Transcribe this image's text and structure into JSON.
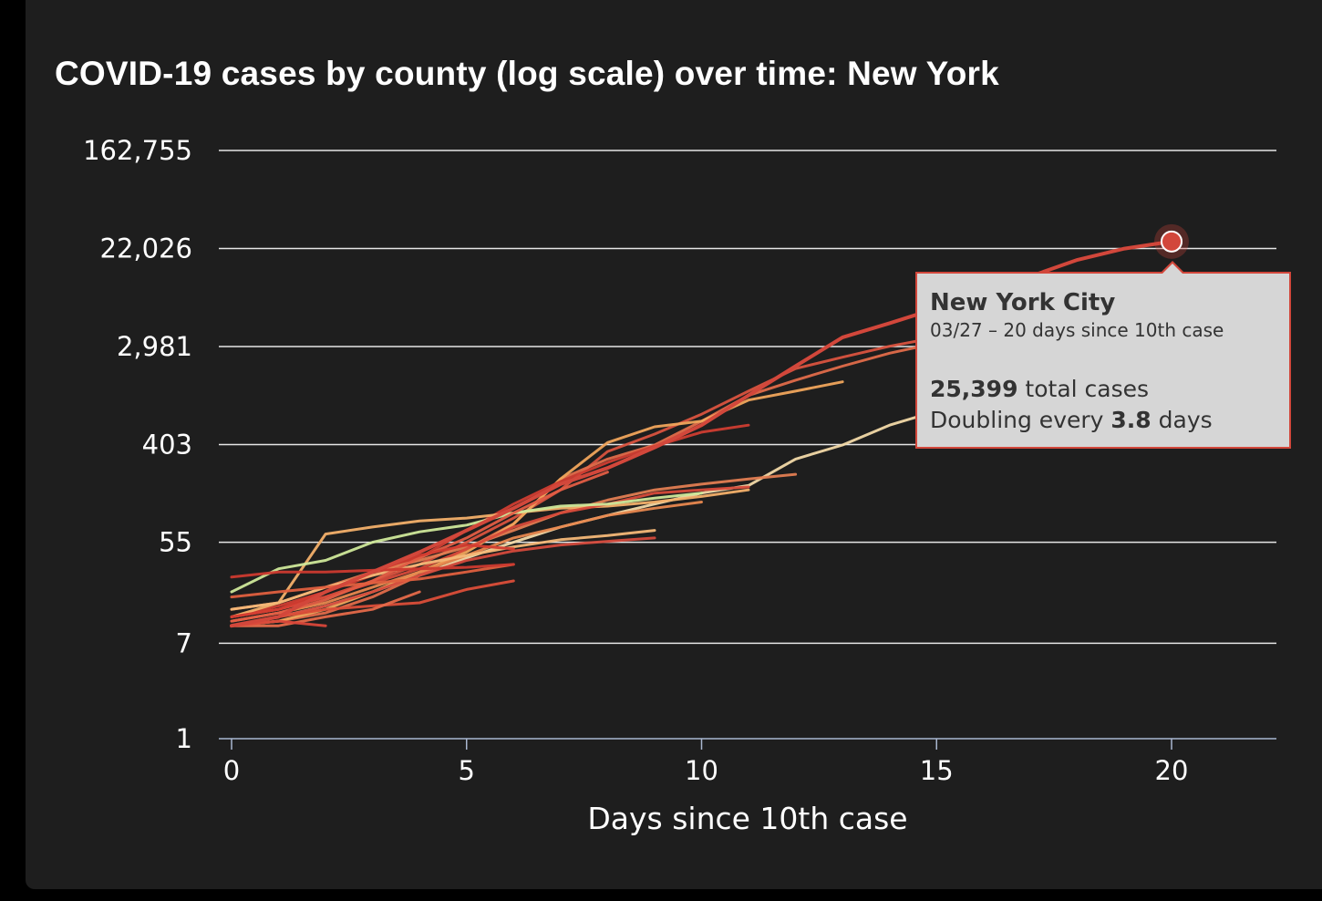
{
  "chart_data": {
    "type": "line",
    "title": "COVID-19 cases by county (log scale) over time: New York",
    "xlabel": "Days since 10th case",
    "ylabel": "",
    "y_scale": "log",
    "xlim": [
      0,
      22
    ],
    "ylim": [
      1,
      162755
    ],
    "x_ticks": [
      "0",
      "5",
      "10",
      "15",
      "20"
    ],
    "y_ticks": [
      "1",
      "7",
      "55",
      "403",
      "2,981",
      "22,026",
      "162,755"
    ],
    "grid": true,
    "series": [
      {
        "name": "New York City",
        "color": "#d2473b",
        "highlight": true,
        "points": [
          [
            0,
            10
          ],
          [
            1,
            12
          ],
          [
            2,
            20
          ],
          [
            3,
            30
          ],
          [
            4,
            45
          ],
          [
            5,
            70
          ],
          [
            6,
            110
          ],
          [
            7,
            180
          ],
          [
            8,
            250
          ],
          [
            9,
            380
          ],
          [
            10,
            600
          ],
          [
            11,
            1100
          ],
          [
            12,
            2000
          ],
          [
            13,
            3600
          ],
          [
            14,
            4800
          ],
          [
            15,
            6500
          ],
          [
            16,
            9000
          ],
          [
            17,
            12500
          ],
          [
            18,
            17500
          ],
          [
            19,
            22000
          ],
          [
            20,
            25399
          ]
        ]
      },
      {
        "color": "#f2d9a8",
        "points": [
          [
            0,
            10
          ],
          [
            1,
            12
          ],
          [
            2,
            15
          ],
          [
            3,
            20
          ],
          [
            4,
            28
          ],
          [
            5,
            40
          ],
          [
            6,
            55
          ],
          [
            7,
            75
          ],
          [
            8,
            95
          ],
          [
            9,
            120
          ],
          [
            10,
            150
          ],
          [
            11,
            175
          ],
          [
            12,
            300
          ],
          [
            13,
            400
          ],
          [
            14,
            600
          ],
          [
            15,
            800
          ],
          [
            16,
            1100
          ],
          [
            17,
            1500
          ],
          [
            18,
            2300
          ],
          [
            19,
            3100
          ],
          [
            20,
            3800
          ],
          [
            21,
            4600
          ],
          [
            22,
            5400
          ]
        ]
      },
      {
        "color": "#d9533f",
        "points": [
          [
            0,
            12
          ],
          [
            1,
            14
          ],
          [
            2,
            18
          ],
          [
            3,
            25
          ],
          [
            4,
            35
          ],
          [
            5,
            55
          ],
          [
            6,
            90
          ],
          [
            7,
            160
          ],
          [
            8,
            350
          ],
          [
            9,
            500
          ],
          [
            10,
            750
          ],
          [
            11,
            1200
          ],
          [
            12,
            1900
          ],
          [
            13,
            2400
          ],
          [
            14,
            3000
          ],
          [
            15,
            3600
          ],
          [
            16,
            4300
          ],
          [
            17,
            5100
          ],
          [
            18,
            5900
          ]
        ]
      },
      {
        "color": "#e06c4a",
        "points": [
          [
            0,
            10
          ],
          [
            1,
            11
          ],
          [
            2,
            13
          ],
          [
            3,
            18
          ],
          [
            4,
            28
          ],
          [
            5,
            48
          ],
          [
            6,
            80
          ],
          [
            7,
            200
          ],
          [
            8,
            300
          ],
          [
            9,
            400
          ],
          [
            10,
            650
          ],
          [
            11,
            1100
          ],
          [
            12,
            1500
          ],
          [
            13,
            2000
          ],
          [
            14,
            2600
          ],
          [
            15,
            3200
          ],
          [
            16,
            3900
          ],
          [
            17,
            4600
          ]
        ]
      },
      {
        "color": "#f0a55c",
        "points": [
          [
            0,
            10
          ],
          [
            1,
            11
          ],
          [
            2,
            14
          ],
          [
            3,
            20
          ],
          [
            4,
            30
          ],
          [
            5,
            45
          ],
          [
            6,
            80
          ],
          [
            7,
            200
          ],
          [
            8,
            420
          ],
          [
            9,
            580
          ],
          [
            10,
            650
          ],
          [
            11,
            1000
          ],
          [
            12,
            1200
          ],
          [
            13,
            1450
          ]
        ]
      },
      {
        "color": "#cf3d31",
        "points": [
          [
            0,
            12
          ],
          [
            1,
            15
          ],
          [
            2,
            20
          ],
          [
            3,
            28
          ],
          [
            4,
            40
          ],
          [
            5,
            70
          ],
          [
            6,
            120
          ],
          [
            7,
            190
          ],
          [
            8,
            280
          ],
          [
            9,
            390
          ],
          [
            10,
            520
          ],
          [
            11,
            600
          ]
        ]
      },
      {
        "color": "#e27d52",
        "points": [
          [
            0,
            14
          ],
          [
            1,
            16
          ],
          [
            2,
            22
          ],
          [
            3,
            30
          ],
          [
            4,
            38
          ],
          [
            5,
            50
          ],
          [
            6,
            70
          ],
          [
            7,
            100
          ],
          [
            8,
            130
          ],
          [
            9,
            160
          ],
          [
            10,
            180
          ],
          [
            11,
            200
          ],
          [
            12,
            220
          ]
        ]
      },
      {
        "color": "#f3b06a",
        "points": [
          [
            0,
            12
          ],
          [
            1,
            16
          ],
          [
            2,
            65
          ],
          [
            3,
            75
          ],
          [
            4,
            85
          ],
          [
            5,
            90
          ],
          [
            6,
            100
          ],
          [
            7,
            110
          ],
          [
            8,
            115
          ],
          [
            9,
            125
          ],
          [
            10,
            140
          ],
          [
            11,
            160
          ]
        ]
      },
      {
        "color": "#d64a3a",
        "points": [
          [
            0,
            12
          ],
          [
            1,
            14
          ],
          [
            2,
            18
          ],
          [
            3,
            24
          ],
          [
            4,
            32
          ],
          [
            5,
            48
          ],
          [
            6,
            75
          ],
          [
            7,
            100
          ],
          [
            8,
            120
          ],
          [
            9,
            150
          ],
          [
            10,
            160
          ],
          [
            11,
            170
          ]
        ]
      },
      {
        "color": "#cfe89a",
        "points": [
          [
            0,
            20
          ],
          [
            1,
            32
          ],
          [
            2,
            38
          ],
          [
            3,
            55
          ],
          [
            4,
            68
          ],
          [
            5,
            78
          ],
          [
            6,
            100
          ],
          [
            7,
            115
          ],
          [
            8,
            120
          ],
          [
            9,
            135
          ],
          [
            10,
            150
          ]
        ]
      },
      {
        "color": "#e8884f",
        "points": [
          [
            0,
            11
          ],
          [
            1,
            13
          ],
          [
            2,
            16
          ],
          [
            3,
            22
          ],
          [
            4,
            30
          ],
          [
            5,
            42
          ],
          [
            6,
            60
          ],
          [
            7,
            75
          ],
          [
            8,
            95
          ],
          [
            9,
            110
          ],
          [
            10,
            125
          ]
        ]
      },
      {
        "color": "#f4b878",
        "points": [
          [
            0,
            14
          ],
          [
            1,
            16
          ],
          [
            2,
            22
          ],
          [
            3,
            28
          ],
          [
            4,
            35
          ],
          [
            5,
            42
          ],
          [
            6,
            50
          ],
          [
            7,
            58
          ],
          [
            8,
            63
          ],
          [
            9,
            70
          ]
        ]
      },
      {
        "color": "#d44a3c",
        "points": [
          [
            0,
            10
          ],
          [
            1,
            12
          ],
          [
            2,
            15
          ],
          [
            3,
            20
          ],
          [
            4,
            28
          ],
          [
            5,
            38
          ],
          [
            6,
            46
          ],
          [
            7,
            52
          ],
          [
            8,
            56
          ],
          [
            9,
            60
          ]
        ]
      },
      {
        "color": "#e25d45",
        "points": [
          [
            0,
            11
          ],
          [
            1,
            13
          ],
          [
            2,
            17
          ],
          [
            3,
            25
          ],
          [
            4,
            40
          ],
          [
            5,
            60
          ],
          [
            6,
            100
          ],
          [
            7,
            160
          ],
          [
            8,
            230
          ]
        ]
      },
      {
        "color": "#d33c30",
        "points": [
          [
            0,
            12
          ],
          [
            1,
            14
          ],
          [
            2,
            20
          ],
          [
            3,
            30
          ],
          [
            4,
            42
          ],
          [
            5,
            52
          ],
          [
            6,
            48
          ]
        ]
      },
      {
        "color": "#e0603f",
        "points": [
          [
            0,
            18
          ],
          [
            1,
            20
          ],
          [
            2,
            22
          ],
          [
            3,
            24
          ],
          [
            4,
            26
          ],
          [
            5,
            30
          ],
          [
            6,
            35
          ]
        ]
      },
      {
        "color": "#cc3a2f",
        "points": [
          [
            0,
            27
          ],
          [
            1,
            30
          ],
          [
            2,
            30
          ],
          [
            3,
            31
          ],
          [
            4,
            32
          ],
          [
            5,
            33
          ],
          [
            6,
            35
          ]
        ]
      },
      {
        "color": "#db4e39",
        "points": [
          [
            0,
            10
          ],
          [
            1,
            12
          ],
          [
            2,
            14
          ],
          [
            3,
            15
          ],
          [
            4,
            16
          ],
          [
            5,
            21
          ],
          [
            6,
            25
          ]
        ]
      },
      {
        "color": "#e56a4a",
        "points": [
          [
            0,
            10
          ],
          [
            1,
            10
          ],
          [
            2,
            12
          ],
          [
            3,
            14
          ],
          [
            4,
            20
          ]
        ]
      },
      {
        "color": "#d9473a",
        "points": [
          [
            0,
            10
          ],
          [
            1,
            11
          ],
          [
            2,
            10
          ]
        ]
      }
    ]
  },
  "tooltip": {
    "name": "New York City",
    "subtitle": "03/27 – 20 days since 10th case",
    "cases_value": "25,399",
    "cases_label": " total cases",
    "doubling_prefix": "Doubling every ",
    "doubling_value": "3.8",
    "doubling_suffix": " days"
  }
}
